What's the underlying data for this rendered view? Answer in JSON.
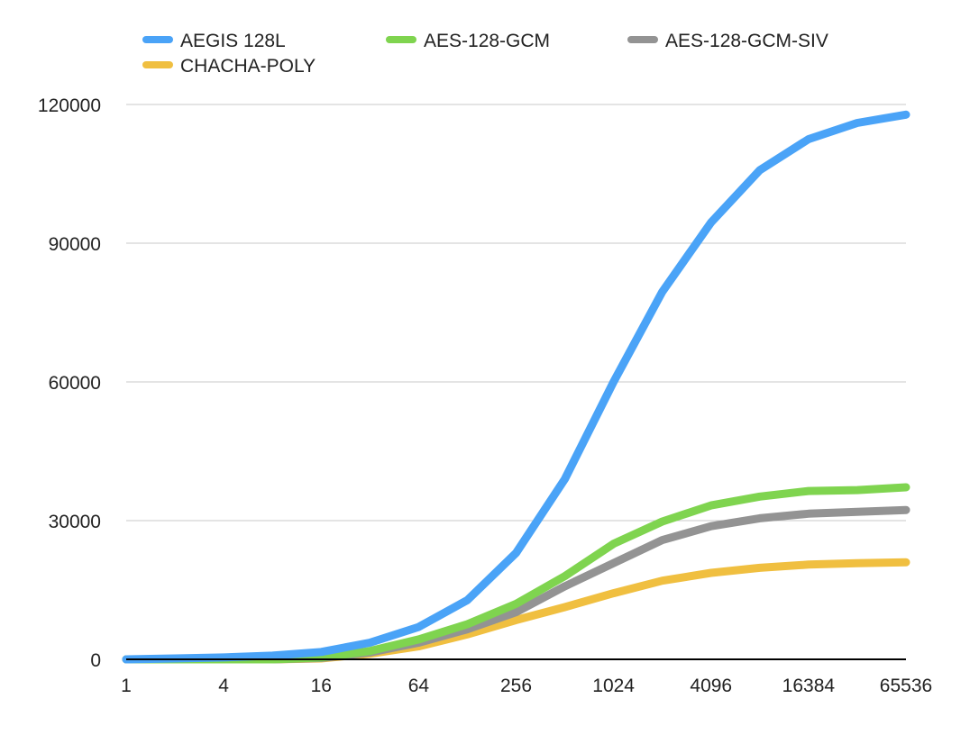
{
  "chart_data": {
    "type": "line",
    "title": "",
    "xlabel": "",
    "ylabel": "",
    "x": [
      1,
      2,
      4,
      8,
      16,
      32,
      64,
      128,
      256,
      512,
      1024,
      2048,
      4096,
      8192,
      16384,
      32768,
      65536
    ],
    "x_tick_labels": [
      "1",
      "4",
      "16",
      "64",
      "256",
      "1024",
      "4096",
      "16384",
      "65536"
    ],
    "y_ticks": [
      0,
      30000,
      60000,
      90000,
      120000
    ],
    "y_tick_labels": [
      "0",
      "30000",
      "60000",
      "90000",
      "120000"
    ],
    "ylim": [
      0,
      120000
    ],
    "x_scale": "log2",
    "grid": "horizontal",
    "legend_position": "top",
    "series": [
      {
        "name": "AEGIS 128L",
        "color": "#4aa3f7",
        "values": [
          0,
          200,
          400,
          800,
          1600,
          3600,
          7000,
          12800,
          23000,
          39000,
          60000,
          79500,
          94500,
          105800,
          112500,
          116000,
          117800
        ]
      },
      {
        "name": "AES-128-GCM",
        "color": "#7fd44f",
        "values": [
          0,
          0,
          0,
          0,
          400,
          1800,
          4300,
          7600,
          12000,
          18000,
          25000,
          29800,
          33300,
          35200,
          36400,
          36600,
          37200
        ]
      },
      {
        "name": "AES-128-GCM-SIV",
        "color": "#939393",
        "values": [
          0,
          0,
          0,
          0,
          300,
          1500,
          3600,
          6500,
          10200,
          15800,
          20800,
          25800,
          28800,
          30500,
          31500,
          31900,
          32300
        ]
      },
      {
        "name": "CHACHA-POLY",
        "color": "#f0bf40",
        "values": [
          0,
          0,
          0,
          0,
          200,
          1200,
          2800,
          5400,
          8500,
          11300,
          14300,
          17000,
          18700,
          19800,
          20500,
          20800,
          21000
        ]
      }
    ]
  }
}
